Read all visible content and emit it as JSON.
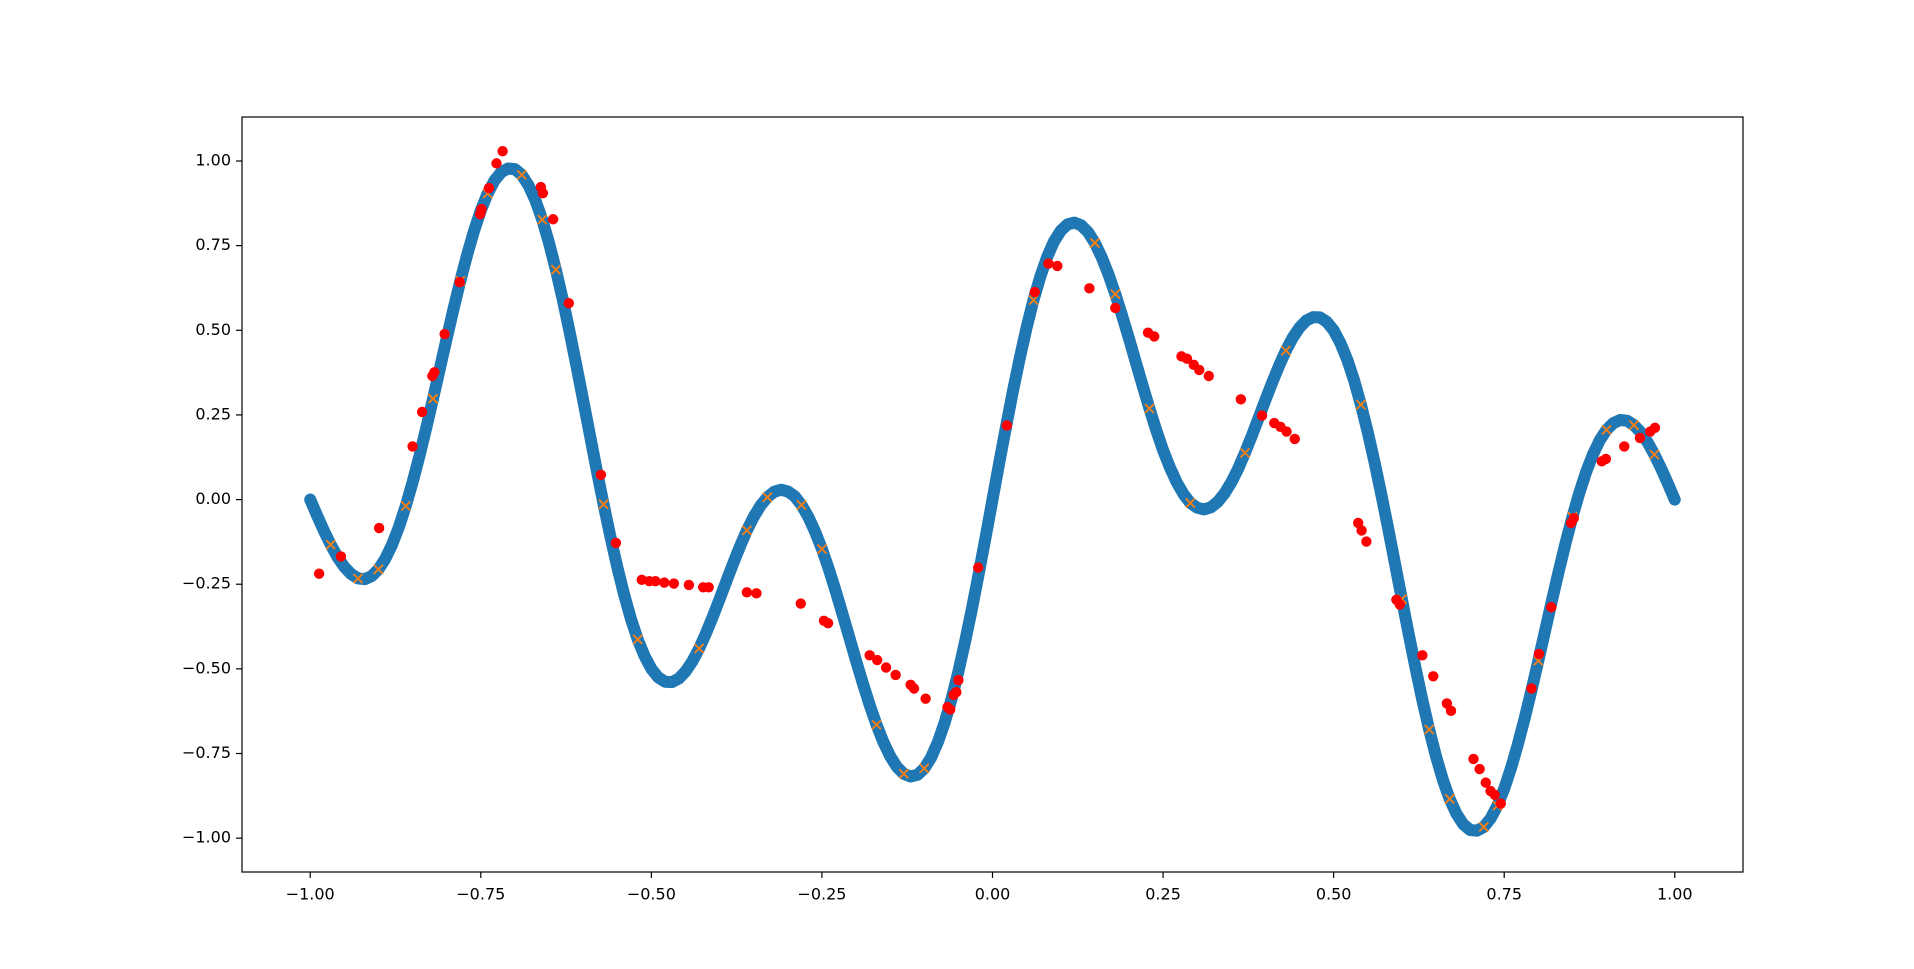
{
  "chart_data": {
    "type": "scatter",
    "xlim": [
      -1.1,
      1.1
    ],
    "ylim": [
      -1.1,
      1.13
    ],
    "xticks": [
      {
        "value": -1,
        "label": "−1.00"
      },
      {
        "value": -0.75,
        "label": "−0.75"
      },
      {
        "value": -0.5,
        "label": "−0.50"
      },
      {
        "value": -0.25,
        "label": "−0.25"
      },
      {
        "value": 0,
        "label": "0.00"
      },
      {
        "value": 0.25,
        "label": "0.25"
      },
      {
        "value": 0.5,
        "label": "0.50"
      },
      {
        "value": 0.75,
        "label": "0.75"
      },
      {
        "value": 1,
        "label": "1.00"
      }
    ],
    "yticks": [
      {
        "value": -1,
        "label": "−1.00"
      },
      {
        "value": -0.75,
        "label": "−0.75"
      },
      {
        "value": -0.5,
        "label": "−0.50"
      },
      {
        "value": -0.25,
        "label": "−0.25"
      },
      {
        "value": 0,
        "label": "0.00"
      },
      {
        "value": 0.25,
        "label": "0.25"
      },
      {
        "value": 0.5,
        "label": "0.50"
      },
      {
        "value": 0.75,
        "label": "0.75"
      },
      {
        "value": 1,
        "label": "1.00"
      }
    ],
    "grid": false,
    "series": [
      {
        "type": "line",
        "color": "#1f77b4",
        "x": [
          -1,
          -0.99,
          -0.98,
          -0.97,
          -0.96,
          -0.95,
          -0.94,
          -0.93,
          -0.92,
          -0.91,
          -0.9,
          -0.89,
          -0.88,
          -0.87,
          -0.86,
          -0.85,
          -0.84,
          -0.83,
          -0.82,
          -0.81,
          -0.8,
          -0.79,
          -0.78,
          -0.77,
          -0.76,
          -0.75,
          -0.74,
          -0.73,
          -0.72,
          -0.71,
          -0.7,
          -0.69,
          -0.68,
          -0.67,
          -0.66,
          -0.65,
          -0.64,
          -0.63,
          -0.62,
          -0.61,
          -0.6,
          -0.59,
          -0.58,
          -0.57,
          -0.56,
          -0.55,
          -0.54,
          -0.53,
          -0.52,
          -0.51,
          -0.5,
          -0.49,
          -0.48,
          -0.47,
          -0.46,
          -0.45,
          -0.44,
          -0.43,
          -0.42,
          -0.41,
          -0.4,
          -0.39,
          -0.38,
          -0.37,
          -0.36,
          -0.35,
          -0.34,
          -0.33,
          -0.32,
          -0.31,
          -0.3,
          -0.29,
          -0.28,
          -0.27,
          -0.26,
          -0.25,
          -0.24,
          -0.23,
          -0.22,
          -0.21,
          -0.2,
          -0.19,
          -0.18,
          -0.17,
          -0.16,
          -0.15,
          -0.14,
          -0.13,
          -0.12,
          -0.11,
          -0.1,
          -0.09,
          -0.08,
          -0.07,
          -0.06,
          -0.05,
          -0.04,
          -0.03,
          -0.02,
          -0.01,
          0,
          0.01,
          0.02,
          0.03,
          0.04,
          0.05,
          0.06,
          0.07,
          0.08,
          0.09,
          0.1,
          0.11,
          0.12,
          0.13,
          0.14,
          0.15,
          0.16,
          0.17,
          0.18,
          0.19,
          0.2,
          0.21,
          0.22,
          0.23,
          0.24,
          0.25,
          0.26,
          0.27,
          0.28,
          0.29,
          0.3,
          0.31,
          0.32,
          0.33,
          0.34,
          0.35,
          0.36,
          0.37,
          0.38,
          0.39,
          0.4,
          0.41,
          0.42,
          0.43,
          0.44,
          0.45,
          0.46,
          0.47,
          0.48,
          0.49,
          0.5,
          0.51,
          0.52,
          0.53,
          0.54,
          0.55,
          0.56,
          0.57,
          0.58,
          0.59,
          0.6,
          0.61,
          0.62,
          0.63,
          0.64,
          0.65,
          0.66,
          0.67,
          0.68,
          0.69,
          0.7,
          0.71,
          0.72,
          0.73,
          0.74,
          0.75,
          0.76,
          0.77,
          0.78,
          0.79,
          0.8,
          0.81,
          0.82,
          0.83,
          0.84,
          0.85,
          0.86,
          0.87,
          0.88,
          0.89,
          0.9,
          0.91,
          0.92,
          0.93,
          0.94,
          0.95,
          0.96,
          0.97,
          0.98,
          0.99,
          1
        ],
        "values": [
          0,
          -0.047,
          -0.092,
          -0.133,
          -0.17,
          -0.199,
          -0.22,
          -0.233,
          -0.235,
          -0.226,
          -0.206,
          -0.175,
          -0.133,
          -0.081,
          -0.019,
          0.051,
          0.128,
          0.211,
          0.298,
          0.387,
          0.476,
          0.563,
          0.646,
          0.723,
          0.793,
          0.854,
          0.904,
          0.942,
          0.967,
          0.978,
          0.976,
          0.959,
          0.928,
          0.884,
          0.827,
          0.758,
          0.679,
          0.592,
          0.497,
          0.397,
          0.294,
          0.19,
          0.086,
          -0.014,
          -0.11,
          -0.199,
          -0.28,
          -0.352,
          -0.413,
          -0.462,
          -0.5,
          -0.525,
          -0.538,
          -0.539,
          -0.529,
          -0.508,
          -0.478,
          -0.44,
          -0.395,
          -0.346,
          -0.294,
          -0.241,
          -0.188,
          -0.138,
          -0.091,
          -0.051,
          -0.018,
          0.007,
          0.023,
          0.029,
          0.024,
          0.01,
          -0.016,
          -0.051,
          -0.095,
          -0.146,
          -0.205,
          -0.269,
          -0.337,
          -0.406,
          -0.476,
          -0.543,
          -0.607,
          -0.665,
          -0.716,
          -0.758,
          -0.79,
          -0.81,
          -0.818,
          -0.813,
          -0.794,
          -0.762,
          -0.716,
          -0.658,
          -0.589,
          -0.508,
          -0.418,
          -0.321,
          -0.217,
          -0.11,
          0,
          0.11,
          0.217,
          0.321,
          0.418,
          0.508,
          0.589,
          0.658,
          0.716,
          0.762,
          0.794,
          0.813,
          0.818,
          0.81,
          0.79,
          0.758,
          0.716,
          0.665,
          0.607,
          0.543,
          0.476,
          0.406,
          0.337,
          0.269,
          0.205,
          0.146,
          0.095,
          0.051,
          0.016,
          -0.01,
          -0.024,
          -0.029,
          -0.023,
          -0.007,
          0.018,
          0.051,
          0.091,
          0.138,
          0.188,
          0.241,
          0.294,
          0.346,
          0.395,
          0.44,
          0.478,
          0.508,
          0.529,
          0.539,
          0.538,
          0.525,
          0.5,
          0.462,
          0.413,
          0.352,
          0.28,
          0.199,
          0.11,
          0.014,
          -0.086,
          -0.19,
          -0.294,
          -0.397,
          -0.497,
          -0.592,
          -0.679,
          -0.758,
          -0.827,
          -0.884,
          -0.928,
          -0.959,
          -0.976,
          -0.978,
          -0.967,
          -0.942,
          -0.904,
          -0.854,
          -0.793,
          -0.723,
          -0.646,
          -0.563,
          -0.476,
          -0.387,
          -0.298,
          -0.211,
          -0.128,
          -0.051,
          0.019,
          0.081,
          0.133,
          0.175,
          0.206,
          0.226,
          0.235,
          0.233,
          0.22,
          0.199,
          0.17,
          0.133,
          0.092,
          0.047,
          0
        ]
      },
      {
        "type": "scatter",
        "marker": "x",
        "color": "#ff7f0e",
        "x": [
          -0.97,
          -0.93,
          -0.9,
          -0.86,
          -0.82,
          -0.78,
          -0.74,
          -0.69,
          -0.66,
          -0.64,
          -0.57,
          -0.52,
          -0.43,
          -0.36,
          -0.33,
          -0.28,
          -0.25,
          -0.17,
          -0.13,
          -0.1,
          0.06,
          0.15,
          0.18,
          0.23,
          0.29,
          0.37,
          0.43,
          0.54,
          0.6,
          0.64,
          0.67,
          0.72,
          0.74,
          0.8,
          0.85,
          0.9,
          0.94,
          0.97
        ],
        "values": [
          -0.133,
          -0.233,
          -0.206,
          -0.019,
          0.298,
          0.646,
          0.904,
          0.959,
          0.827,
          0.679,
          -0.014,
          -0.413,
          -0.44,
          -0.091,
          0.007,
          -0.016,
          -0.146,
          -0.665,
          -0.81,
          -0.794,
          0.589,
          0.758,
          0.607,
          0.269,
          -0.01,
          0.138,
          0.44,
          0.28,
          -0.294,
          -0.679,
          -0.884,
          -0.967,
          -0.904,
          -0.476,
          -0.051,
          0.206,
          0.22,
          0.133
        ]
      },
      {
        "type": "scatter",
        "marker": "o",
        "color": "#ff0000",
        "x": [
          -0.987,
          -0.955,
          -0.899,
          -0.836,
          -0.85,
          -0.821,
          -0.818,
          -0.803,
          -0.781,
          -0.751,
          -0.749,
          -0.738,
          -0.727,
          -0.718,
          -0.662,
          -0.659,
          -0.644,
          -0.621,
          -0.574,
          -0.552,
          -0.514,
          -0.503,
          -0.494,
          -0.481,
          -0.467,
          -0.445,
          -0.424,
          -0.416,
          -0.36,
          -0.346,
          -0.281,
          -0.247,
          -0.241,
          -0.18,
          -0.169,
          -0.156,
          -0.142,
          -0.12,
          -0.115,
          -0.098,
          -0.066,
          -0.062,
          -0.057,
          -0.053,
          -0.05,
          -0.021,
          0.021,
          0.062,
          0.082,
          0.095,
          0.142,
          0.18,
          0.228,
          0.237,
          0.277,
          0.285,
          0.295,
          0.303,
          0.317,
          0.364,
          0.395,
          0.413,
          0.422,
          0.431,
          0.443,
          0.536,
          0.541,
          0.548,
          0.592,
          0.597,
          0.63,
          0.646,
          0.666,
          0.672,
          0.705,
          0.714,
          0.723,
          0.73,
          0.736,
          0.745,
          0.79,
          0.801,
          0.819,
          0.848,
          0.852,
          0.893,
          0.899,
          0.926,
          0.949,
          0.964,
          0.971
        ],
        "values": [
          -0.219,
          -0.168,
          -0.084,
          0.259,
          0.157,
          0.365,
          0.376,
          0.489,
          0.642,
          0.843,
          0.858,
          0.92,
          0.993,
          1.029,
          0.923,
          0.905,
          0.828,
          0.58,
          0.073,
          -0.128,
          -0.237,
          -0.241,
          -0.241,
          -0.245,
          -0.248,
          -0.252,
          -0.259,
          -0.259,
          -0.274,
          -0.277,
          -0.307,
          -0.358,
          -0.365,
          -0.46,
          -0.474,
          -0.496,
          -0.518,
          -0.547,
          -0.558,
          -0.588,
          -0.613,
          -0.62,
          -0.577,
          -0.569,
          -0.533,
          -0.201,
          0.219,
          0.613,
          0.697,
          0.69,
          0.624,
          0.566,
          0.493,
          0.482,
          0.423,
          0.416,
          0.398,
          0.383,
          0.365,
          0.296,
          0.248,
          0.226,
          0.215,
          0.201,
          0.179,
          -0.069,
          -0.091,
          -0.124,
          -0.296,
          -0.31,
          -0.46,
          -0.522,
          -0.602,
          -0.624,
          -0.766,
          -0.796,
          -0.836,
          -0.861,
          -0.872,
          -0.898,
          -0.558,
          -0.456,
          -0.318,
          -0.069,
          -0.055,
          0.113,
          0.12,
          0.157,
          0.182,
          0.201,
          0.212
        ]
      }
    ]
  }
}
